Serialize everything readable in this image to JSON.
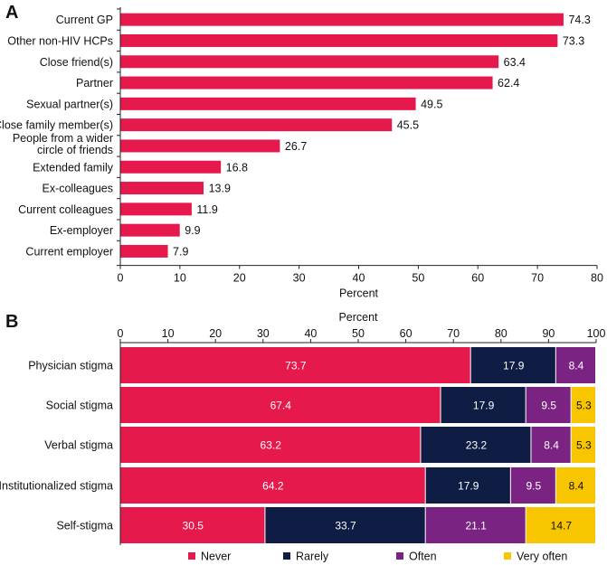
{
  "chart_data": [
    {
      "panel": "A",
      "type": "bar",
      "orientation": "horizontal",
      "categories": [
        "Current GP",
        "Other non-HIV HCPs",
        "Close friend(s)",
        "Partner",
        "Sexual partner(s)",
        "Close family member(s)",
        "People from a wider circle of friends",
        "Extended family",
        "Ex-colleagues",
        "Current colleagues",
        "Ex-employer",
        "Current employer"
      ],
      "category_lines": [
        [
          "Current GP"
        ],
        [
          "Other non-HIV HCPs"
        ],
        [
          "Close friend(s)"
        ],
        [
          "Partner"
        ],
        [
          "Sexual partner(s)"
        ],
        [
          "Close family member(s)"
        ],
        [
          "People from a wider",
          "circle of friends"
        ],
        [
          "Extended family"
        ],
        [
          "Ex-colleagues"
        ],
        [
          "Current colleagues"
        ],
        [
          "Ex-employer"
        ],
        [
          "Current employer"
        ]
      ],
      "values": [
        74.3,
        73.3,
        63.4,
        62.4,
        49.5,
        45.5,
        26.7,
        16.8,
        13.9,
        11.9,
        9.9,
        7.9
      ],
      "value_labels": [
        "74.3",
        "73.3",
        "63.4",
        "62.4",
        "49.5",
        "45.5",
        "26.7",
        "16.8",
        "13.9",
        "11.9",
        "9.9",
        "7.9"
      ],
      "xlabel": "Percent",
      "xlim": [
        0,
        80
      ],
      "ticks": [
        0,
        10,
        20,
        30,
        40,
        50,
        60,
        70,
        80
      ],
      "tick_labels": [
        "0",
        "10",
        "20",
        "30",
        "40",
        "50",
        "60",
        "70",
        "80"
      ],
      "color": "#e5194b"
    },
    {
      "panel": "B",
      "type": "bar",
      "orientation": "horizontal",
      "stacked": true,
      "categories": [
        "Physician stigma",
        "Social stigma",
        "Verbal stigma",
        "Institutionalized stigma",
        "Self-stigma"
      ],
      "series": [
        {
          "name": "Never",
          "color": "#e5194b",
          "text_color": "#ffffff",
          "values": [
            73.7,
            67.4,
            63.2,
            64.2,
            30.5
          ],
          "labels": [
            "73.7",
            "67.4",
            "63.2",
            "64.2",
            "30.5"
          ]
        },
        {
          "name": "Rarely",
          "color": "#0f1d45",
          "text_color": "#ffffff",
          "values": [
            17.9,
            17.9,
            23.2,
            17.9,
            33.7
          ],
          "labels": [
            "17.9",
            "17.9",
            "23.2",
            "17.9",
            "33.7"
          ]
        },
        {
          "name": "Often",
          "color": "#7b2382",
          "text_color": "#ffffff",
          "values": [
            8.4,
            9.5,
            8.4,
            9.5,
            21.1
          ],
          "labels": [
            "8.4",
            "9.5",
            "8.4",
            "9.5",
            "21.1"
          ]
        },
        {
          "name": "Very often",
          "color": "#f7c600",
          "text_color": "#111111",
          "values": [
            0,
            5.3,
            5.3,
            8.4,
            14.7
          ],
          "labels": [
            "",
            "5.3",
            "5.3",
            "8.4",
            "14.7"
          ]
        }
      ],
      "xlabel": "Percent",
      "xlim": [
        0,
        100
      ],
      "ticks": [
        0,
        10,
        20,
        30,
        40,
        50,
        60,
        70,
        80,
        90,
        100
      ],
      "tick_labels": [
        "0",
        "10",
        "20",
        "30",
        "40",
        "50",
        "60",
        "70",
        "80",
        "90",
        "100"
      ],
      "legend_position": "bottom"
    }
  ]
}
